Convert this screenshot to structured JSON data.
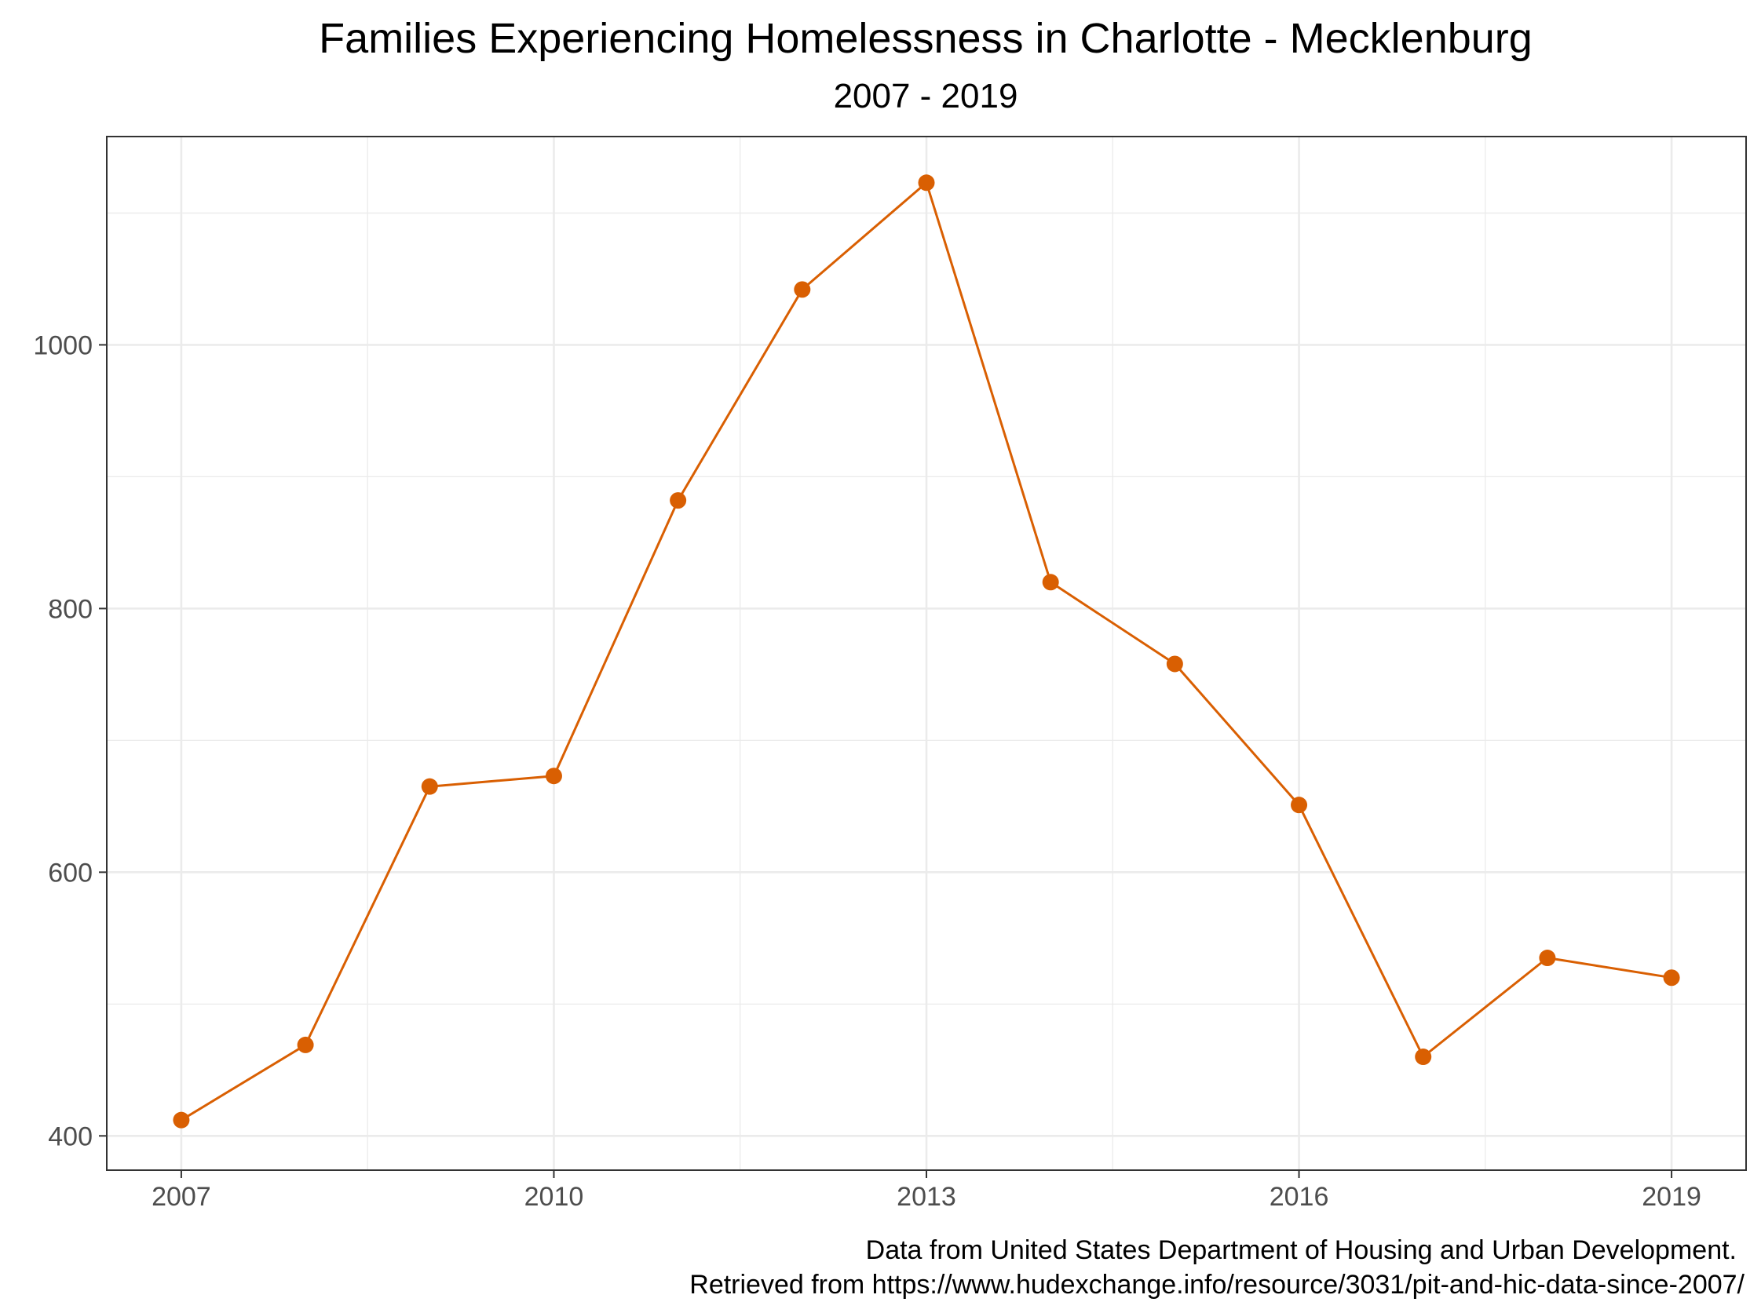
{
  "chart_data": {
    "type": "line",
    "title": "Families Experiencing Homelessness in Charlotte - Mecklenburg",
    "subtitle": "2007 - 2019",
    "xlabel": "",
    "ylabel": "",
    "caption_lines": [
      "Data from United States Department of Housing and Urban Development.",
      "Retrieved from https://www.hudexchange.info/resource/3031/pit-and-hic-data-since-2007/"
    ],
    "x": [
      2007,
      2008,
      2009,
      2010,
      2011,
      2012,
      2013,
      2014,
      2015,
      2016,
      2017,
      2018,
      2019
    ],
    "series": [
      {
        "values": [
          412,
          469,
          665,
          673,
          882,
          1042,
          1123,
          820,
          758,
          651,
          460,
          535,
          520
        ]
      }
    ],
    "x_ticks": [
      2007,
      2010,
      2013,
      2016,
      2019
    ],
    "x_tick_labels": [
      "2007",
      "2010",
      "2013",
      "2016",
      "2019"
    ],
    "y_ticks": [
      400,
      600,
      800,
      1000
    ],
    "y_tick_labels": [
      "400",
      "600",
      "800",
      "1000"
    ],
    "xlim": [
      2006.4,
      2019.6
    ],
    "ylim": [
      374,
      1158
    ],
    "grid": true,
    "legend": "none",
    "colors": {
      "series": "#d95f02",
      "grid": "#ebebeb",
      "panel_border": "#333333",
      "tick_text": "#4d4d4d",
      "tick_mark": "#333333"
    }
  }
}
